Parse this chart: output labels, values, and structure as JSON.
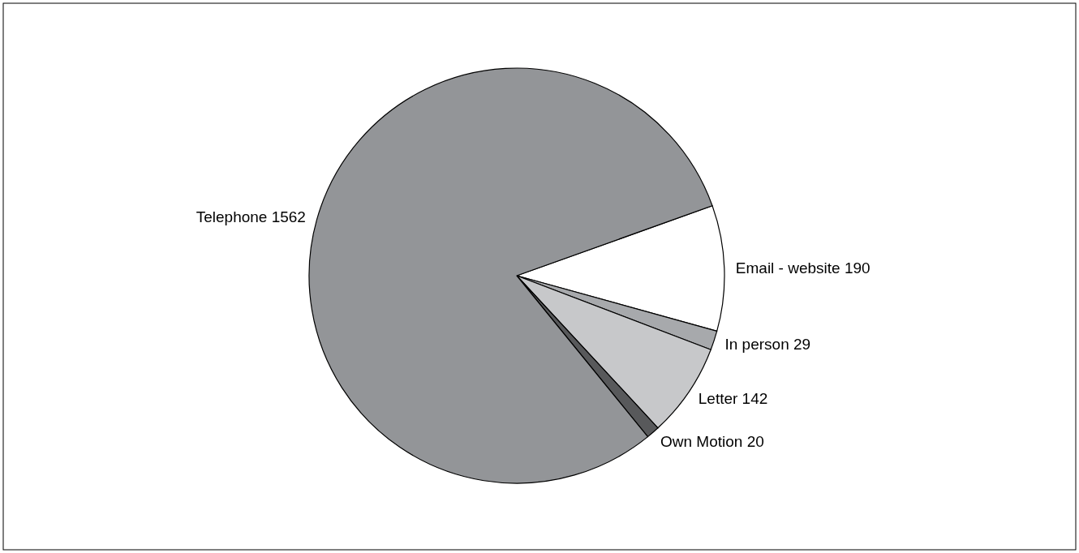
{
  "chart_data": {
    "type": "pie",
    "categories": [
      "Email - website",
      "In person",
      "Letter",
      "Own Motion",
      "Telephone"
    ],
    "values": [
      190,
      29,
      142,
      20,
      1562
    ],
    "colors": [
      "#ffffff",
      "#a7a9ac",
      "#c7c8ca",
      "#58595b",
      "#939598"
    ],
    "data_labels": true
  }
}
